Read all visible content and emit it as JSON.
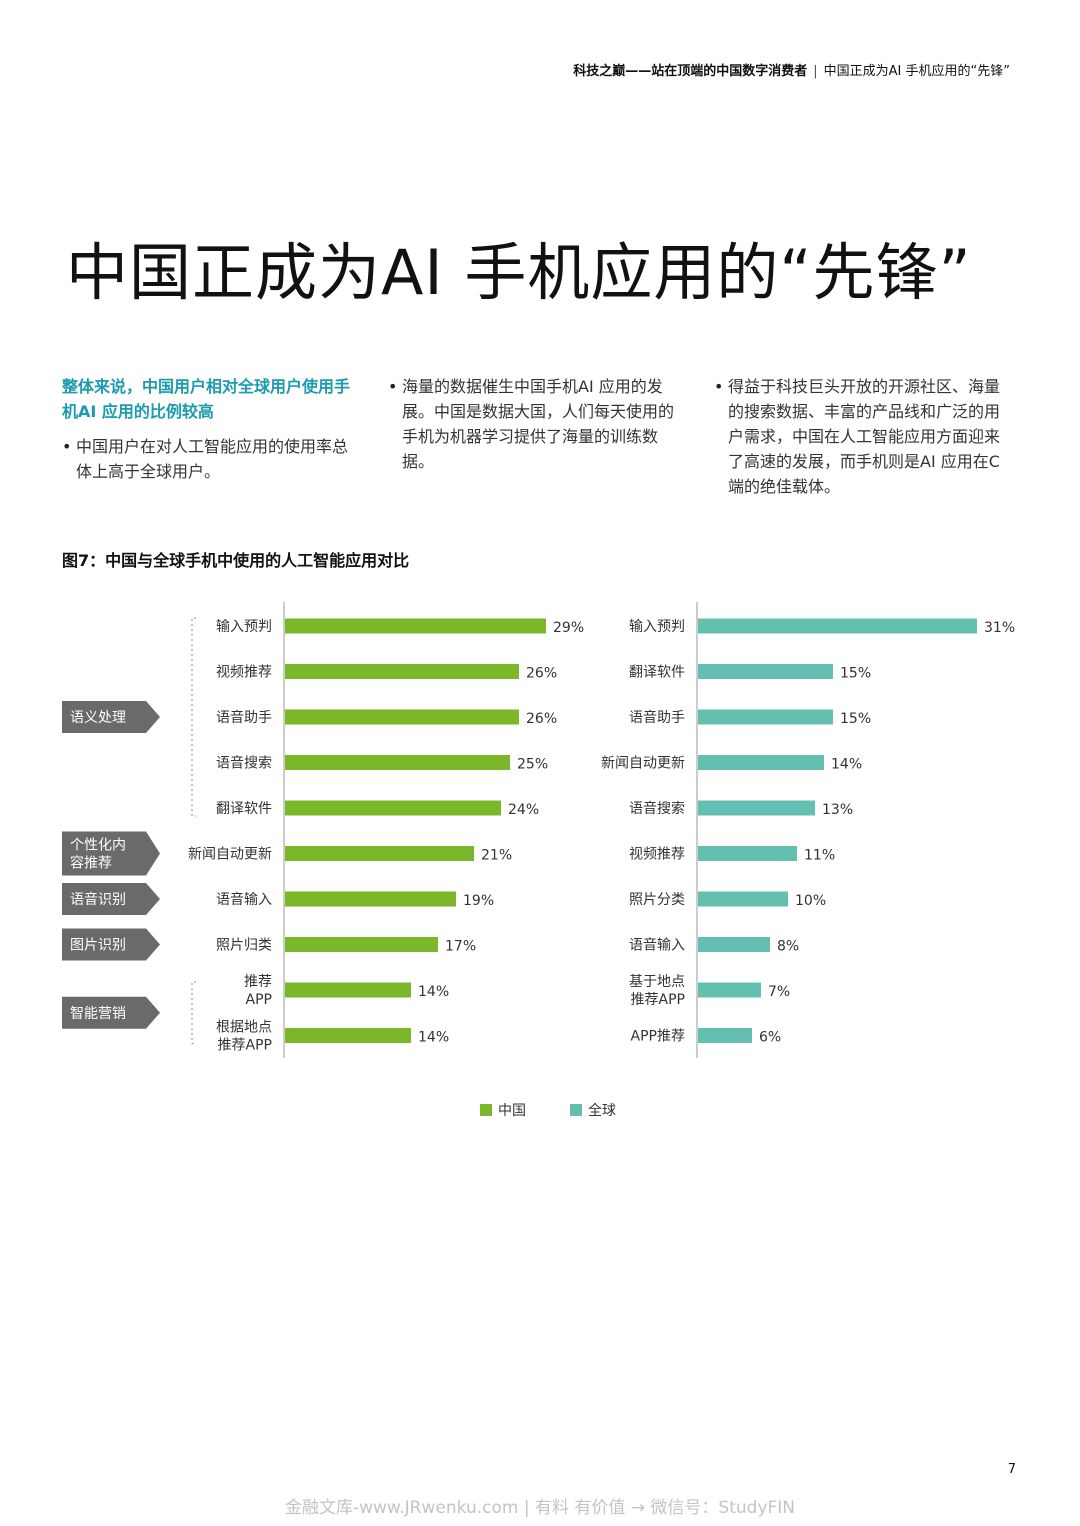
{
  "header": {
    "series_title": "科技之巅——站在顶端的中国数字消费者",
    "separator": "|",
    "section_title": "中国正成为AI 手机应用的“先锋”"
  },
  "page_title": "中国正成为AI 手机应用的“先锋”",
  "columns": {
    "col1": {
      "heading": "整体来说，中国用户相对全球用户使用手机AI 应用的比例较高",
      "bullet": "中国用户在对人工智能应用的使用率总体上高于全球用户。"
    },
    "col2": {
      "bullet": "海量的数据催生中国手机AI 应用的发展。中国是数据大国，人们每天使用的手机为机器学习提供了海量的训练数据。"
    },
    "col3": {
      "bullet": "得益于科技巨头开放的开源社区、海量的搜索数据、丰富的产品线和广泛的用户需求，中国在人工智能应用方面迎来了高速的发展，而手机则是AI 应用在C端的绝佳载体。"
    }
  },
  "figure_title": "图7：中国与全球手机中使用的人工智能应用对比",
  "chart_data": [
    {
      "type": "bar",
      "orientation": "horizontal",
      "series_name": "中国",
      "color": "#7ab829",
      "categories": [
        "输入预判",
        "视频推荐",
        "语音助手",
        "语音搜索",
        "翻译软件",
        "新闻自动更新",
        "语音输入",
        "照片归类",
        "推荐\nAPP",
        "根据地点\n推荐APP"
      ],
      "values": [
        29,
        26,
        26,
        25,
        24,
        21,
        19,
        17,
        14,
        14
      ],
      "value_labels": [
        "29%",
        "26%",
        "26%",
        "25%",
        "24%",
        "21%",
        "19%",
        "17%",
        "14%",
        "14%"
      ],
      "groups": [
        {
          "label": "语义处理",
          "rows": [
            0,
            4
          ]
        },
        {
          "label": "个性化内\n容推荐",
          "rows": [
            5,
            5
          ]
        },
        {
          "label": "语音识别",
          "rows": [
            6,
            6
          ]
        },
        {
          "label": "图片识别",
          "rows": [
            7,
            7
          ]
        },
        {
          "label": "智能营销",
          "rows": [
            8,
            9
          ]
        }
      ]
    },
    {
      "type": "bar",
      "orientation": "horizontal",
      "series_name": "全球",
      "color": "#64bfb0",
      "categories": [
        "输入预判",
        "翻译软件",
        "语音助手",
        "新闻自动更新",
        "语音搜索",
        "视频推荐",
        "照片分类",
        "语音输入",
        "基于地点\n推荐APP",
        "APP推荐"
      ],
      "values": [
        31,
        15,
        15,
        14,
        13,
        11,
        10,
        8,
        7,
        6
      ],
      "value_labels": [
        "31%",
        "15%",
        "15%",
        "14%",
        "13%",
        "11%",
        "10%",
        "8%",
        "7%",
        "6%"
      ]
    }
  ],
  "legend": [
    {
      "label": "中国",
      "color": "#7ab829"
    },
    {
      "label": "全球",
      "color": "#64bfb0"
    }
  ],
  "page_number": "7",
  "watermark": "金融文库-www.JRwenku.com | 有料 有价值 → 微信号：StudyFIN"
}
